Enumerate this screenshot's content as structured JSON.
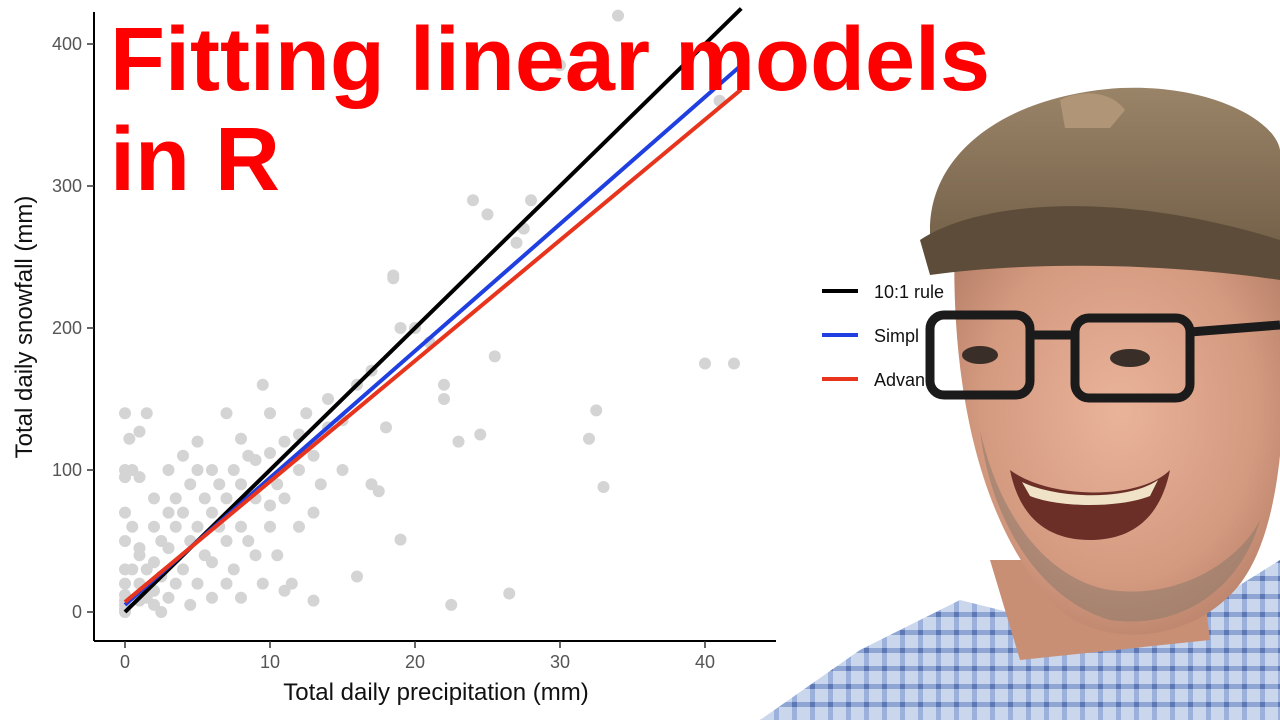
{
  "title": {
    "line1": "Fitting linear models",
    "line2": "in R"
  },
  "colors": {
    "title": "#ff0000",
    "points": "#d4d4d4",
    "rule": "#000000",
    "simple": "#1f3fe0",
    "advanced": "#e8341c"
  },
  "chart_data": {
    "type": "scatter",
    "xlabel": "Total daily precipitation (mm)",
    "ylabel": "Total daily snowfall (mm)",
    "xlim": [
      -2,
      45
    ],
    "ylim": [
      -20,
      420
    ],
    "x_ticks": [
      0,
      10,
      20,
      30,
      40
    ],
    "y_ticks": [
      0,
      100,
      200,
      300,
      400
    ],
    "x_tick_labels": [
      "0",
      "10",
      "20",
      "30",
      "40"
    ],
    "y_tick_labels": [
      "0",
      "100",
      "200",
      "300",
      "400"
    ],
    "grid": false,
    "legend_position": "right",
    "legend": [
      {
        "label": "10:1 rule",
        "color": "#000000"
      },
      {
        "label": "Simpl",
        "color": "#1f3fe0"
      },
      {
        "label": "Advanc",
        "color": "#e8341c"
      }
    ],
    "lines": [
      {
        "name": "10:1 rule",
        "color": "#000000",
        "x": [
          0,
          42.5
        ],
        "y": [
          0,
          425
        ]
      },
      {
        "name": "Simple",
        "color": "#1f3fe0",
        "x": [
          0,
          42.5
        ],
        "y": [
          5,
          385
        ]
      },
      {
        "name": "Advanced",
        "color": "#e8341c",
        "x": [
          0,
          42.5
        ],
        "y": [
          7,
          368
        ]
      }
    ],
    "points": [
      [
        0,
        140
      ],
      [
        0,
        100
      ],
      [
        0,
        95
      ],
      [
        0,
        70
      ],
      [
        0,
        50
      ],
      [
        0,
        30
      ],
      [
        0,
        20
      ],
      [
        0,
        12
      ],
      [
        0,
        8
      ],
      [
        0,
        5
      ],
      [
        0,
        2
      ],
      [
        0,
        0
      ],
      [
        0.3,
        122
      ],
      [
        0.5,
        30
      ],
      [
        0.5,
        60
      ],
      [
        0.5,
        100
      ],
      [
        1,
        8
      ],
      [
        1,
        20
      ],
      [
        1,
        40
      ],
      [
        1,
        45
      ],
      [
        1,
        95
      ],
      [
        1,
        127
      ],
      [
        1.5,
        140
      ],
      [
        1.5,
        10
      ],
      [
        1.5,
        30
      ],
      [
        2,
        5
      ],
      [
        2,
        15
      ],
      [
        2,
        35
      ],
      [
        2,
        60
      ],
      [
        2,
        80
      ],
      [
        2.5,
        0
      ],
      [
        2.5,
        25
      ],
      [
        2.5,
        50
      ],
      [
        3,
        10
      ],
      [
        3,
        45
      ],
      [
        3,
        70
      ],
      [
        3,
        100
      ],
      [
        3.5,
        20
      ],
      [
        3.5,
        60
      ],
      [
        3.5,
        80
      ],
      [
        4,
        30
      ],
      [
        4,
        70
      ],
      [
        4,
        110
      ],
      [
        4.5,
        5
      ],
      [
        4.5,
        50
      ],
      [
        4.5,
        90
      ],
      [
        5,
        20
      ],
      [
        5,
        60
      ],
      [
        5,
        100
      ],
      [
        5,
        120
      ],
      [
        5.5,
        40
      ],
      [
        5.5,
        80
      ],
      [
        6,
        10
      ],
      [
        6,
        35
      ],
      [
        6,
        70
      ],
      [
        6,
        100
      ],
      [
        6.5,
        60
      ],
      [
        6.5,
        90
      ],
      [
        7,
        20
      ],
      [
        7,
        50
      ],
      [
        7,
        80
      ],
      [
        7,
        140
      ],
      [
        7.5,
        30
      ],
      [
        7.5,
        100
      ],
      [
        8,
        10
      ],
      [
        8,
        60
      ],
      [
        8,
        90
      ],
      [
        8,
        122
      ],
      [
        8.5,
        50
      ],
      [
        8.5,
        110
      ],
      [
        9,
        40
      ],
      [
        9,
        80
      ],
      [
        9,
        107
      ],
      [
        9.5,
        20
      ],
      [
        9.5,
        160
      ],
      [
        10,
        60
      ],
      [
        10,
        75
      ],
      [
        10,
        112
      ],
      [
        10,
        140
      ],
      [
        10.5,
        40
      ],
      [
        10.5,
        90
      ],
      [
        11,
        15
      ],
      [
        11,
        80
      ],
      [
        11,
        120
      ],
      [
        11.5,
        20
      ],
      [
        12,
        60
      ],
      [
        12,
        100
      ],
      [
        12,
        125
      ],
      [
        12.5,
        140
      ],
      [
        13,
        8
      ],
      [
        13,
        70
      ],
      [
        13,
        110
      ],
      [
        13.5,
        90
      ],
      [
        14,
        130
      ],
      [
        14,
        150
      ],
      [
        15,
        100
      ],
      [
        15,
        135
      ],
      [
        16,
        25
      ],
      [
        16,
        160
      ],
      [
        17,
        170
      ],
      [
        17,
        90
      ],
      [
        17.5,
        85
      ],
      [
        18,
        130
      ],
      [
        18.5,
        237
      ],
      [
        18.5,
        235
      ],
      [
        19,
        200
      ],
      [
        19,
        51
      ],
      [
        20,
        200
      ],
      [
        21,
        190
      ],
      [
        22,
        160
      ],
      [
        22,
        150
      ],
      [
        22.5,
        5
      ],
      [
        23,
        120
      ],
      [
        24,
        290
      ],
      [
        24.5,
        125
      ],
      [
        25,
        280
      ],
      [
        25.5,
        180
      ],
      [
        26.5,
        13
      ],
      [
        27,
        260
      ],
      [
        27.5,
        270
      ],
      [
        28,
        290
      ],
      [
        32,
        122
      ],
      [
        32.5,
        142
      ],
      [
        33,
        88
      ],
      [
        34,
        420
      ],
      [
        40,
        175
      ],
      [
        42,
        175
      ],
      [
        41,
        360
      ],
      [
        30,
        385
      ]
    ]
  }
}
